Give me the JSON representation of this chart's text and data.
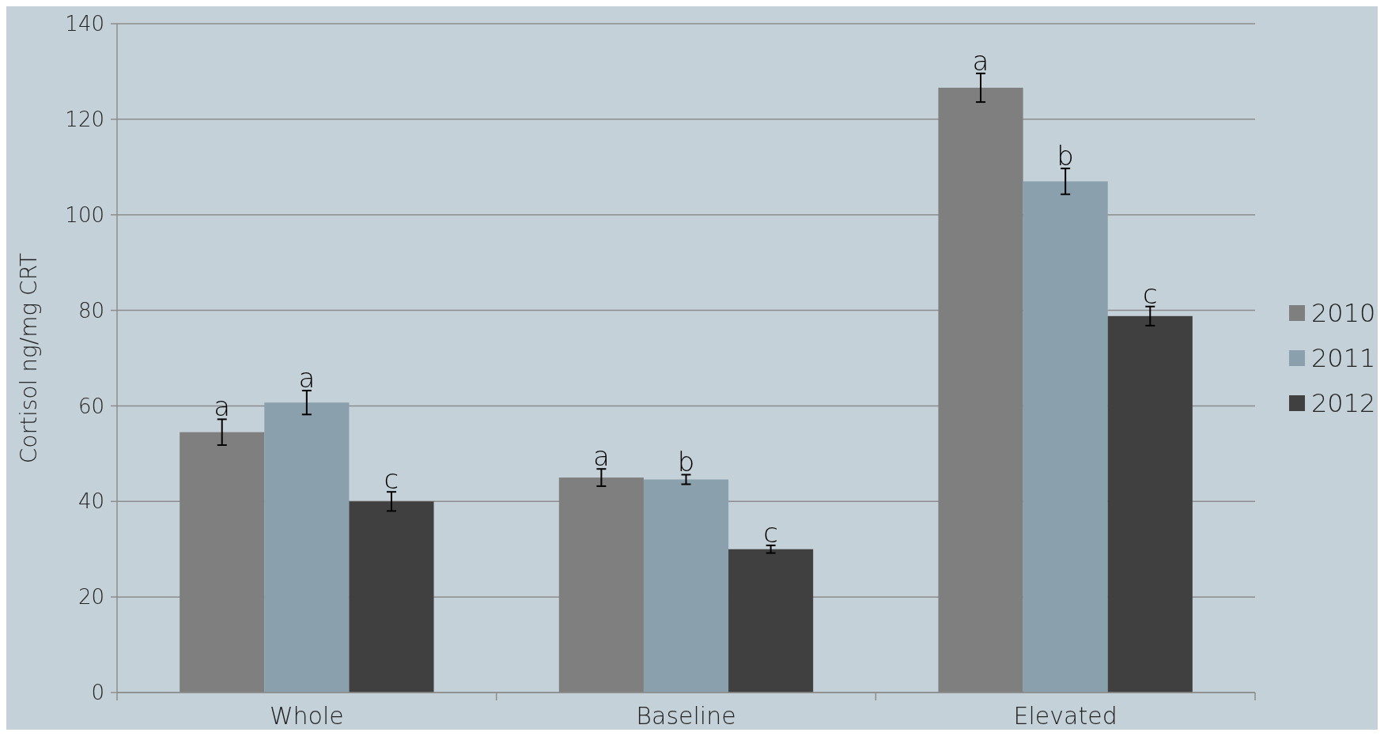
{
  "chart_data": {
    "type": "bar",
    "ylabel": "Cortisol ng/mg CRT",
    "categories": [
      "Whole",
      "Baseline",
      "Elevated"
    ],
    "series": [
      {
        "name": "2010",
        "color": "#7f7f7f",
        "values": [
          54.5,
          45,
          126.6
        ],
        "errors": [
          2.7,
          1.8,
          3
        ]
      },
      {
        "name": "2011",
        "color": "#8aa1ad",
        "values": [
          60.7,
          44.6,
          107
        ],
        "errors": [
          2.5,
          1,
          2.7
        ]
      },
      {
        "name": "2012",
        "color": "#404040",
        "values": [
          40,
          30,
          78.8
        ],
        "errors": [
          2,
          0.8,
          2
        ]
      }
    ],
    "ylim": [
      0,
      140
    ],
    "yticks": [
      0,
      20,
      40,
      60,
      80,
      100,
      120,
      140
    ],
    "grid": "y",
    "legend": "right",
    "annotations": [
      "a",
      "a",
      "c",
      "a",
      "b",
      "c",
      "a",
      "b",
      "c"
    ]
  }
}
